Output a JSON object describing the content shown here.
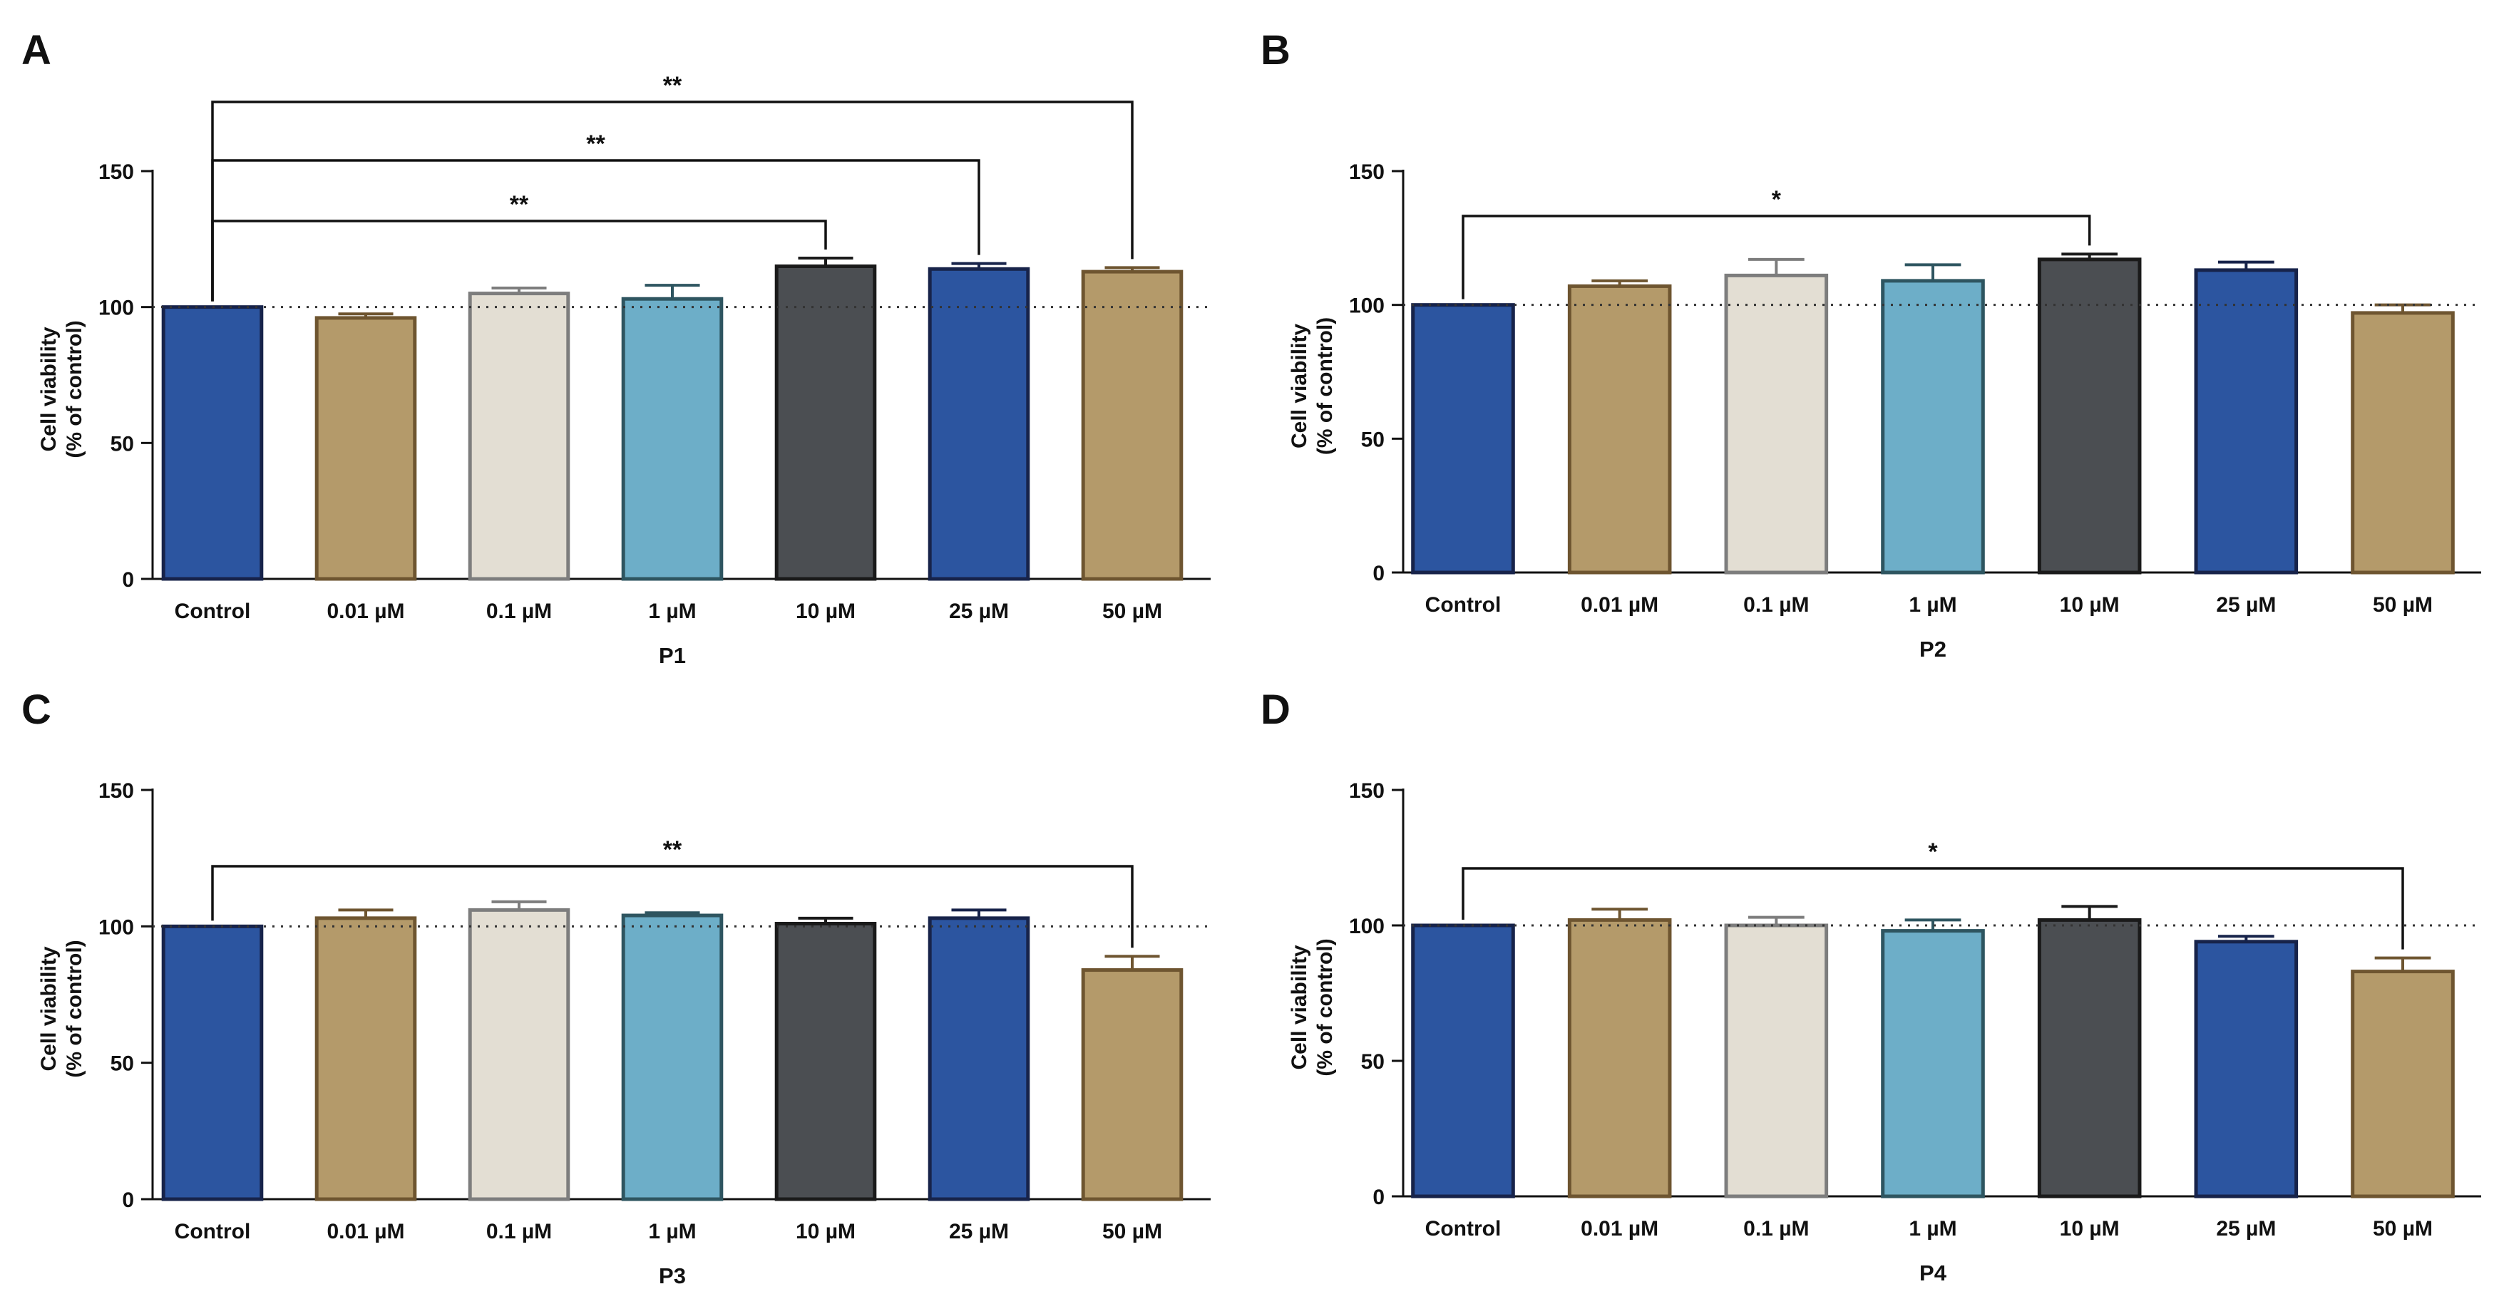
{
  "figure": {
    "colors": {
      "dark_blue": "#2c55a0",
      "dark_blue_edge": "#17234a",
      "tan": "#b49a6a",
      "tan_edge": "#6e5530",
      "beige": "#e3ded3",
      "beige_edge": "#7d7d7d",
      "light_blue": "#6daec8",
      "light_blue_edge": "#2e5560",
      "charcoal": "#4b4e52",
      "charcoal_edge": "#1a1a1a"
    }
  },
  "chart_data": [
    {
      "panel": "A",
      "type": "bar",
      "categories": [
        "Control",
        "0.01 µM",
        "0.1 µM",
        "1 µM",
        "10 µM",
        "25 µM",
        "50 µM"
      ],
      "values": [
        100,
        96,
        105,
        103,
        115,
        114,
        113
      ],
      "errors": [
        0,
        1.5,
        2,
        5,
        3,
        2,
        1.5
      ],
      "bar_colors": [
        "dark_blue",
        "tan",
        "beige",
        "light_blue",
        "charcoal",
        "dark_blue",
        "tan"
      ],
      "xlabel": "P1",
      "ylabel_line1": "Cell viability",
      "ylabel_line2": "(% of control)",
      "ylim": [
        0,
        150
      ],
      "yticks": [
        0,
        50,
        100,
        150
      ],
      "ytick_labels": [
        "0",
        "50",
        "100",
        "150"
      ],
      "reference_line": 100,
      "significance": [
        {
          "from": 0,
          "to": 4,
          "label": "**"
        },
        {
          "from": 0,
          "to": 5,
          "label": "**"
        },
        {
          "from": 0,
          "to": 6,
          "label": "**"
        }
      ]
    },
    {
      "panel": "B",
      "type": "bar",
      "categories": [
        "Control",
        "0.01 µM",
        "0.1 µM",
        "1 µM",
        "10 µM",
        "25 µM",
        "50 µM"
      ],
      "values": [
        100,
        107,
        111,
        109,
        117,
        113,
        97
      ],
      "errors": [
        0,
        2,
        6,
        6,
        2,
        3,
        3
      ],
      "bar_colors": [
        "dark_blue",
        "tan",
        "beige",
        "light_blue",
        "charcoal",
        "dark_blue",
        "tan"
      ],
      "xlabel": "P2",
      "ylabel_line1": "Cell viability",
      "ylabel_line2": "(% of control)",
      "ylim": [
        0,
        150
      ],
      "yticks": [
        0,
        50,
        100,
        150
      ],
      "ytick_labels": [
        "0",
        "50",
        "100",
        "150"
      ],
      "reference_line": 100,
      "significance": [
        {
          "from": 0,
          "to": 4,
          "label": "*"
        }
      ]
    },
    {
      "panel": "C",
      "type": "bar",
      "categories": [
        "Control",
        "0.01 µM",
        "0.1 µM",
        "1 µM",
        "10 µM",
        "25 µM",
        "50 µM"
      ],
      "values": [
        100,
        103,
        106,
        104,
        101,
        103,
        84
      ],
      "errors": [
        0,
        3,
        3,
        1,
        2,
        3,
        5
      ],
      "bar_colors": [
        "dark_blue",
        "tan",
        "beige",
        "light_blue",
        "charcoal",
        "dark_blue",
        "tan"
      ],
      "xlabel": "P3",
      "ylabel_line1": "Cell viability",
      "ylabel_line2": "(% of control)",
      "ylim": [
        0,
        150
      ],
      "yticks": [
        0,
        50,
        100,
        150
      ],
      "ytick_labels": [
        "0",
        "50",
        "100",
        "150"
      ],
      "reference_line": 100,
      "significance": [
        {
          "from": 0,
          "to": 6,
          "label": "**"
        }
      ]
    },
    {
      "panel": "D",
      "type": "bar",
      "categories": [
        "Control",
        "0.01 µM",
        "0.1 µM",
        "1 µM",
        "10 µM",
        "25 µM",
        "50 µM"
      ],
      "values": [
        100,
        102,
        100,
        98,
        102,
        94,
        83
      ],
      "errors": [
        0,
        4,
        3,
        4,
        5,
        2,
        5
      ],
      "bar_colors": [
        "dark_blue",
        "tan",
        "beige",
        "light_blue",
        "charcoal",
        "dark_blue",
        "tan"
      ],
      "xlabel": "P4",
      "ylabel_line1": "Cell viability",
      "ylabel_line2": "(% of control)",
      "ylim": [
        0,
        150
      ],
      "yticks": [
        0,
        50,
        100,
        150
      ],
      "ytick_labels": [
        "0",
        "50",
        "100",
        "150"
      ],
      "reference_line": 100,
      "significance": [
        {
          "from": 0,
          "to": 6,
          "label": "*"
        }
      ]
    }
  ]
}
